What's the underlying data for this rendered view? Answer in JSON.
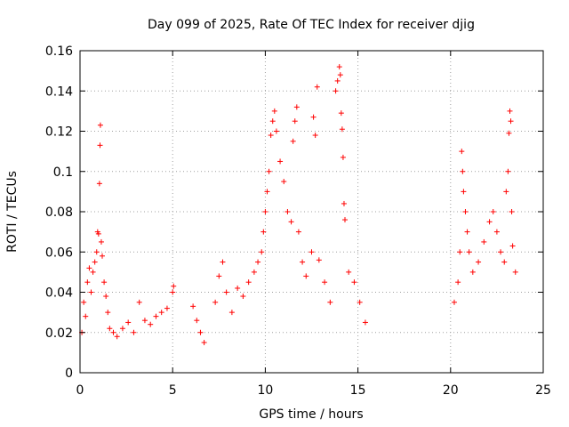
{
  "chart_data": {
    "type": "scatter",
    "title": "Day 099 of 2025, Rate Of TEC Index for receiver djig",
    "xlabel": "GPS time / hours",
    "ylabel": "ROTI / TECUs",
    "xlim": [
      0,
      25
    ],
    "ylim": [
      0,
      0.16
    ],
    "grid": true,
    "marker": "+",
    "marker_color": "#ff0000",
    "xticks": [
      0,
      5,
      10,
      15,
      20,
      25
    ],
    "xtick_labels": [
      "0",
      "5",
      "10",
      "15",
      "20",
      "25"
    ],
    "yticks": [
      0,
      0.02,
      0.04,
      0.06,
      0.08,
      0.1,
      0.12,
      0.14,
      0.16
    ],
    "ytick_labels": [
      "0",
      "0.02",
      "0.04",
      "0.06",
      "0.08",
      "0.1",
      "0.12",
      "0.14",
      "0.16"
    ],
    "series": [
      {
        "name": "ROTI",
        "points": [
          [
            0.1,
            0.02
          ],
          [
            0.2,
            0.035
          ],
          [
            0.3,
            0.028
          ],
          [
            0.4,
            0.045
          ],
          [
            0.5,
            0.052
          ],
          [
            0.6,
            0.04
          ],
          [
            0.7,
            0.05
          ],
          [
            0.8,
            0.055
          ],
          [
            0.9,
            0.06
          ],
          [
            0.95,
            0.07
          ],
          [
            1.0,
            0.069
          ],
          [
            1.05,
            0.094
          ],
          [
            1.08,
            0.113
          ],
          [
            1.1,
            0.123
          ],
          [
            1.15,
            0.065
          ],
          [
            1.2,
            0.058
          ],
          [
            1.3,
            0.045
          ],
          [
            1.4,
            0.038
          ],
          [
            1.5,
            0.03
          ],
          [
            1.6,
            0.022
          ],
          [
            1.8,
            0.02
          ],
          [
            2.0,
            0.018
          ],
          [
            2.3,
            0.022
          ],
          [
            2.6,
            0.025
          ],
          [
            2.9,
            0.02
          ],
          [
            3.2,
            0.035
          ],
          [
            3.5,
            0.026
          ],
          [
            3.8,
            0.024
          ],
          [
            4.1,
            0.028
          ],
          [
            4.4,
            0.03
          ],
          [
            4.7,
            0.032
          ],
          [
            5.0,
            0.04
          ],
          [
            5.05,
            0.043
          ],
          [
            6.1,
            0.033
          ],
          [
            6.3,
            0.026
          ],
          [
            6.5,
            0.02
          ],
          [
            6.7,
            0.015
          ],
          [
            7.3,
            0.035
          ],
          [
            7.5,
            0.048
          ],
          [
            7.7,
            0.055
          ],
          [
            7.9,
            0.04
          ],
          [
            8.2,
            0.03
          ],
          [
            8.5,
            0.042
          ],
          [
            8.8,
            0.038
          ],
          [
            9.1,
            0.045
          ],
          [
            9.4,
            0.05
          ],
          [
            9.6,
            0.055
          ],
          [
            9.8,
            0.06
          ],
          [
            9.9,
            0.07
          ],
          [
            10.0,
            0.08
          ],
          [
            10.1,
            0.09
          ],
          [
            10.2,
            0.1
          ],
          [
            10.3,
            0.118
          ],
          [
            10.4,
            0.125
          ],
          [
            10.5,
            0.13
          ],
          [
            10.6,
            0.12
          ],
          [
            10.8,
            0.105
          ],
          [
            11.0,
            0.095
          ],
          [
            11.2,
            0.08
          ],
          [
            11.4,
            0.075
          ],
          [
            11.5,
            0.115
          ],
          [
            11.6,
            0.125
          ],
          [
            11.7,
            0.132
          ],
          [
            11.8,
            0.07
          ],
          [
            12.0,
            0.055
          ],
          [
            12.2,
            0.048
          ],
          [
            12.5,
            0.06
          ],
          [
            12.6,
            0.127
          ],
          [
            12.7,
            0.118
          ],
          [
            12.8,
            0.142
          ],
          [
            12.9,
            0.056
          ],
          [
            13.2,
            0.045
          ],
          [
            13.5,
            0.035
          ],
          [
            13.8,
            0.14
          ],
          [
            13.9,
            0.145
          ],
          [
            14.0,
            0.152
          ],
          [
            14.05,
            0.148
          ],
          [
            14.1,
            0.129
          ],
          [
            14.15,
            0.121
          ],
          [
            14.2,
            0.107
          ],
          [
            14.25,
            0.084
          ],
          [
            14.3,
            0.076
          ],
          [
            14.5,
            0.05
          ],
          [
            14.8,
            0.045
          ],
          [
            15.1,
            0.035
          ],
          [
            15.4,
            0.025
          ],
          [
            20.2,
            0.035
          ],
          [
            20.4,
            0.045
          ],
          [
            20.5,
            0.06
          ],
          [
            20.6,
            0.11
          ],
          [
            20.65,
            0.1
          ],
          [
            20.7,
            0.09
          ],
          [
            20.8,
            0.08
          ],
          [
            20.9,
            0.07
          ],
          [
            21.0,
            0.06
          ],
          [
            21.2,
            0.05
          ],
          [
            21.5,
            0.055
          ],
          [
            21.8,
            0.065
          ],
          [
            22.1,
            0.075
          ],
          [
            22.3,
            0.08
          ],
          [
            22.5,
            0.07
          ],
          [
            22.7,
            0.06
          ],
          [
            22.9,
            0.055
          ],
          [
            23.0,
            0.09
          ],
          [
            23.1,
            0.1
          ],
          [
            23.15,
            0.119
          ],
          [
            23.2,
            0.13
          ],
          [
            23.25,
            0.125
          ],
          [
            23.3,
            0.08
          ],
          [
            23.35,
            0.063
          ],
          [
            23.5,
            0.05
          ]
        ]
      }
    ]
  }
}
